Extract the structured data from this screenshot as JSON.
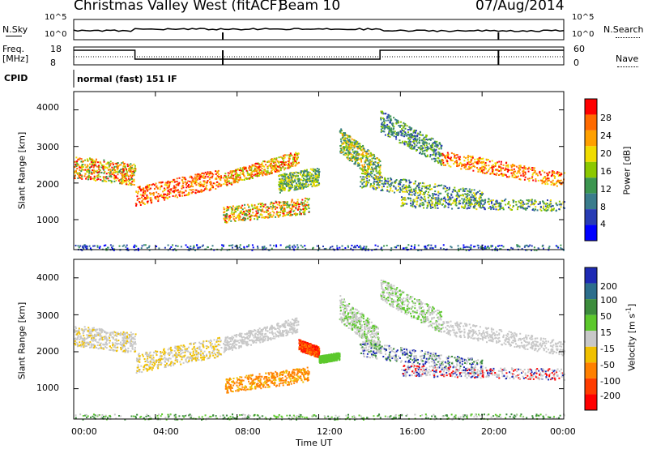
{
  "header": {
    "radar": "Christmas Valley West (fitACF)",
    "beam": "Beam 10",
    "date": "07/Aug/2014"
  },
  "strip": {
    "nsky_label": "N.Sky",
    "nsky_ticks": [
      "10^5",
      "10^0"
    ],
    "nsearch_label": "N.Search",
    "freq_label_1": "Freq.",
    "freq_label_2": "[MHz]",
    "freq_ticks": [
      "18",
      "8"
    ],
    "nave_ticks": [
      "60",
      "0"
    ],
    "nave_label": "Nave",
    "cpid_label": "CPID",
    "cpid_value": "normal (fast) 151 IF"
  },
  "chart_data": [
    {
      "type": "heatmap",
      "ylabel": "Slant Range [km]",
      "xlabel": "",
      "ylim": [
        180,
        4500
      ],
      "yticks": [
        "4000",
        "3000",
        "2000",
        "1000"
      ],
      "colorbar": {
        "label": "Power [dB]",
        "ticks": [
          "28",
          "24",
          "20",
          "16",
          "12",
          "8",
          "4"
        ],
        "colors": [
          "#ff0000",
          "#ff6a00",
          "#ffa000",
          "#f0dc00",
          "#8cc800",
          "#3c9650",
          "#3a7c8c",
          "#283cb4",
          "#0000ff"
        ]
      }
    },
    {
      "type": "heatmap",
      "ylabel": "Slant Range [km]",
      "xlabel": "Time UT",
      "ylim": [
        180,
        4500
      ],
      "yticks": [
        "4000",
        "3000",
        "2000",
        "1000"
      ],
      "xticks": [
        "00:00",
        "04:00",
        "08:00",
        "12:00",
        "16:00",
        "20:00",
        "00:00"
      ],
      "colorbar": {
        "label": "Velocity [m s",
        "label_sup": "-1",
        "label_end": "]",
        "ticks": [
          "200",
          "100",
          "50",
          "15",
          "-15",
          "-50",
          "-100",
          "-200"
        ],
        "colors": [
          "#1e2ab4",
          "#2c6e8c",
          "#3c8c3c",
          "#5cc82c",
          "#c8c8c8",
          "#f0c000",
          "#ff8000",
          "#ff3c00",
          "#ff0000"
        ]
      }
    }
  ]
}
